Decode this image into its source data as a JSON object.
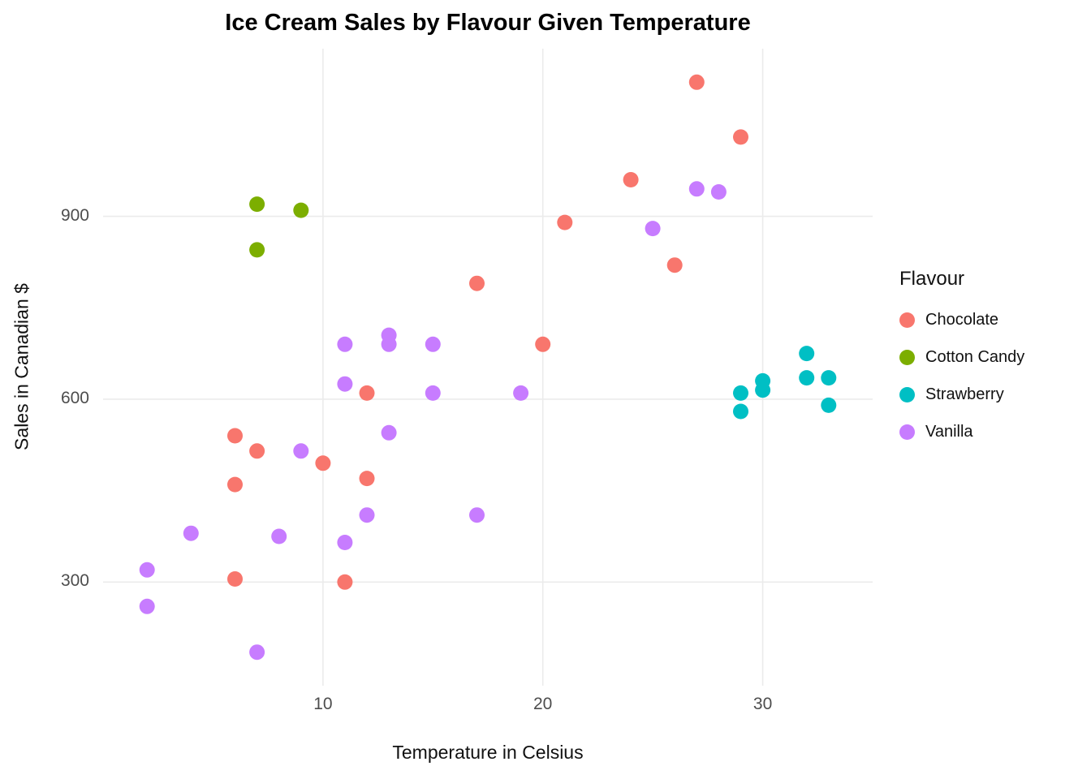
{
  "page": {
    "background": "#FFFFFF"
  },
  "chart_data": {
    "type": "scatter",
    "title": "Ice Cream Sales by Flavour Given Temperature",
    "xlabel": "Temperature in Celsius",
    "ylabel": "Sales in Canadian $",
    "legend_title": "Flavour",
    "legend_position": "right",
    "grid": true,
    "grid_color": "#EBEBEB",
    "tick_label_color": "#4D4D4D",
    "xlim": [
      0,
      35
    ],
    "ylim": [
      130,
      1175
    ],
    "xticks": [
      10,
      20,
      30
    ],
    "yticks": [
      300,
      600,
      900
    ],
    "series": [
      {
        "name": "Chocolate",
        "color": "#F8766D",
        "points": [
          [
            27,
            1120
          ],
          [
            29,
            1030
          ],
          [
            24,
            960
          ],
          [
            21,
            890
          ],
          [
            26,
            820
          ],
          [
            17,
            790
          ],
          [
            20,
            690
          ],
          [
            12,
            610
          ],
          [
            6,
            540
          ],
          [
            7,
            515
          ],
          [
            10,
            495
          ],
          [
            12,
            470
          ],
          [
            6,
            460
          ],
          [
            6,
            305
          ],
          [
            11,
            300
          ]
        ]
      },
      {
        "name": "Cotton Candy",
        "color": "#7CAE00",
        "points": [
          [
            7,
            920
          ],
          [
            9,
            910
          ],
          [
            7,
            845
          ]
        ]
      },
      {
        "name": "Strawberry",
        "color": "#00BFC4",
        "points": [
          [
            32,
            675
          ],
          [
            30,
            630
          ],
          [
            32,
            635
          ],
          [
            33,
            635
          ],
          [
            29,
            610
          ],
          [
            30,
            615
          ],
          [
            29,
            580
          ],
          [
            33,
            590
          ]
        ]
      },
      {
        "name": "Vanilla",
        "color": "#C77CFF",
        "points": [
          [
            27,
            945
          ],
          [
            28,
            940
          ],
          [
            25,
            880
          ],
          [
            13,
            705
          ],
          [
            11,
            690
          ],
          [
            13,
            690
          ],
          [
            15,
            690
          ],
          [
            11,
            625
          ],
          [
            19,
            610
          ],
          [
            15,
            610
          ],
          [
            13,
            545
          ],
          [
            9,
            515
          ],
          [
            12,
            410
          ],
          [
            17,
            410
          ],
          [
            4,
            380
          ],
          [
            8,
            375
          ],
          [
            11,
            365
          ],
          [
            2,
            320
          ],
          [
            2,
            260
          ],
          [
            7,
            185
          ]
        ]
      }
    ]
  }
}
